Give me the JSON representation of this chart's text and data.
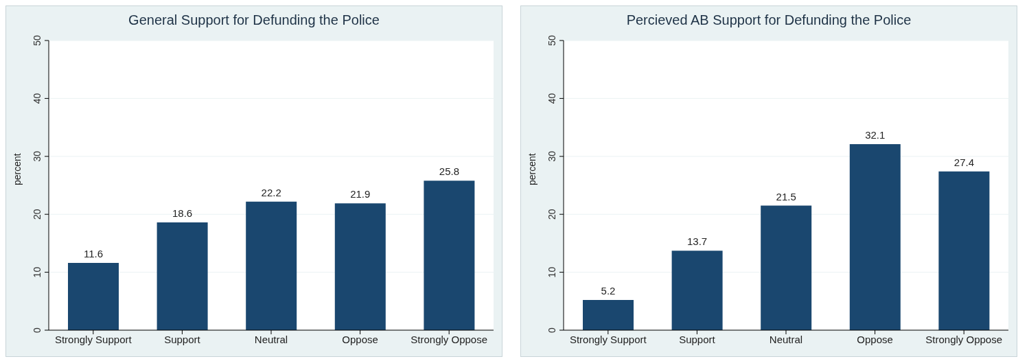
{
  "chart_data": [
    {
      "type": "bar",
      "title": "General Support for Defunding the Police",
      "ylabel": "percent",
      "categories": [
        "Strongly Support",
        "Support",
        "Neutral",
        "Oppose",
        "Strongly Oppose"
      ],
      "values": [
        11.6,
        18.6,
        22.2,
        21.9,
        25.8
      ],
      "color": "#1a476f",
      "ylim": [
        0,
        50
      ],
      "yticks": [
        0,
        10,
        20,
        30,
        40,
        50
      ],
      "grid": "y",
      "data_labels": true
    },
    {
      "type": "bar",
      "title": "Percieved AB Support for Defunding the Police",
      "ylabel": "percent",
      "categories": [
        "Strongly Support",
        "Support",
        "Neutral",
        "Oppose",
        "Strongly Oppose"
      ],
      "values": [
        5.2,
        13.7,
        21.5,
        32.1,
        27.4
      ],
      "color": "#1a476f",
      "ylim": [
        0,
        50
      ],
      "yticks": [
        0,
        10,
        20,
        30,
        40,
        50
      ],
      "grid": "y",
      "data_labels": true
    }
  ]
}
